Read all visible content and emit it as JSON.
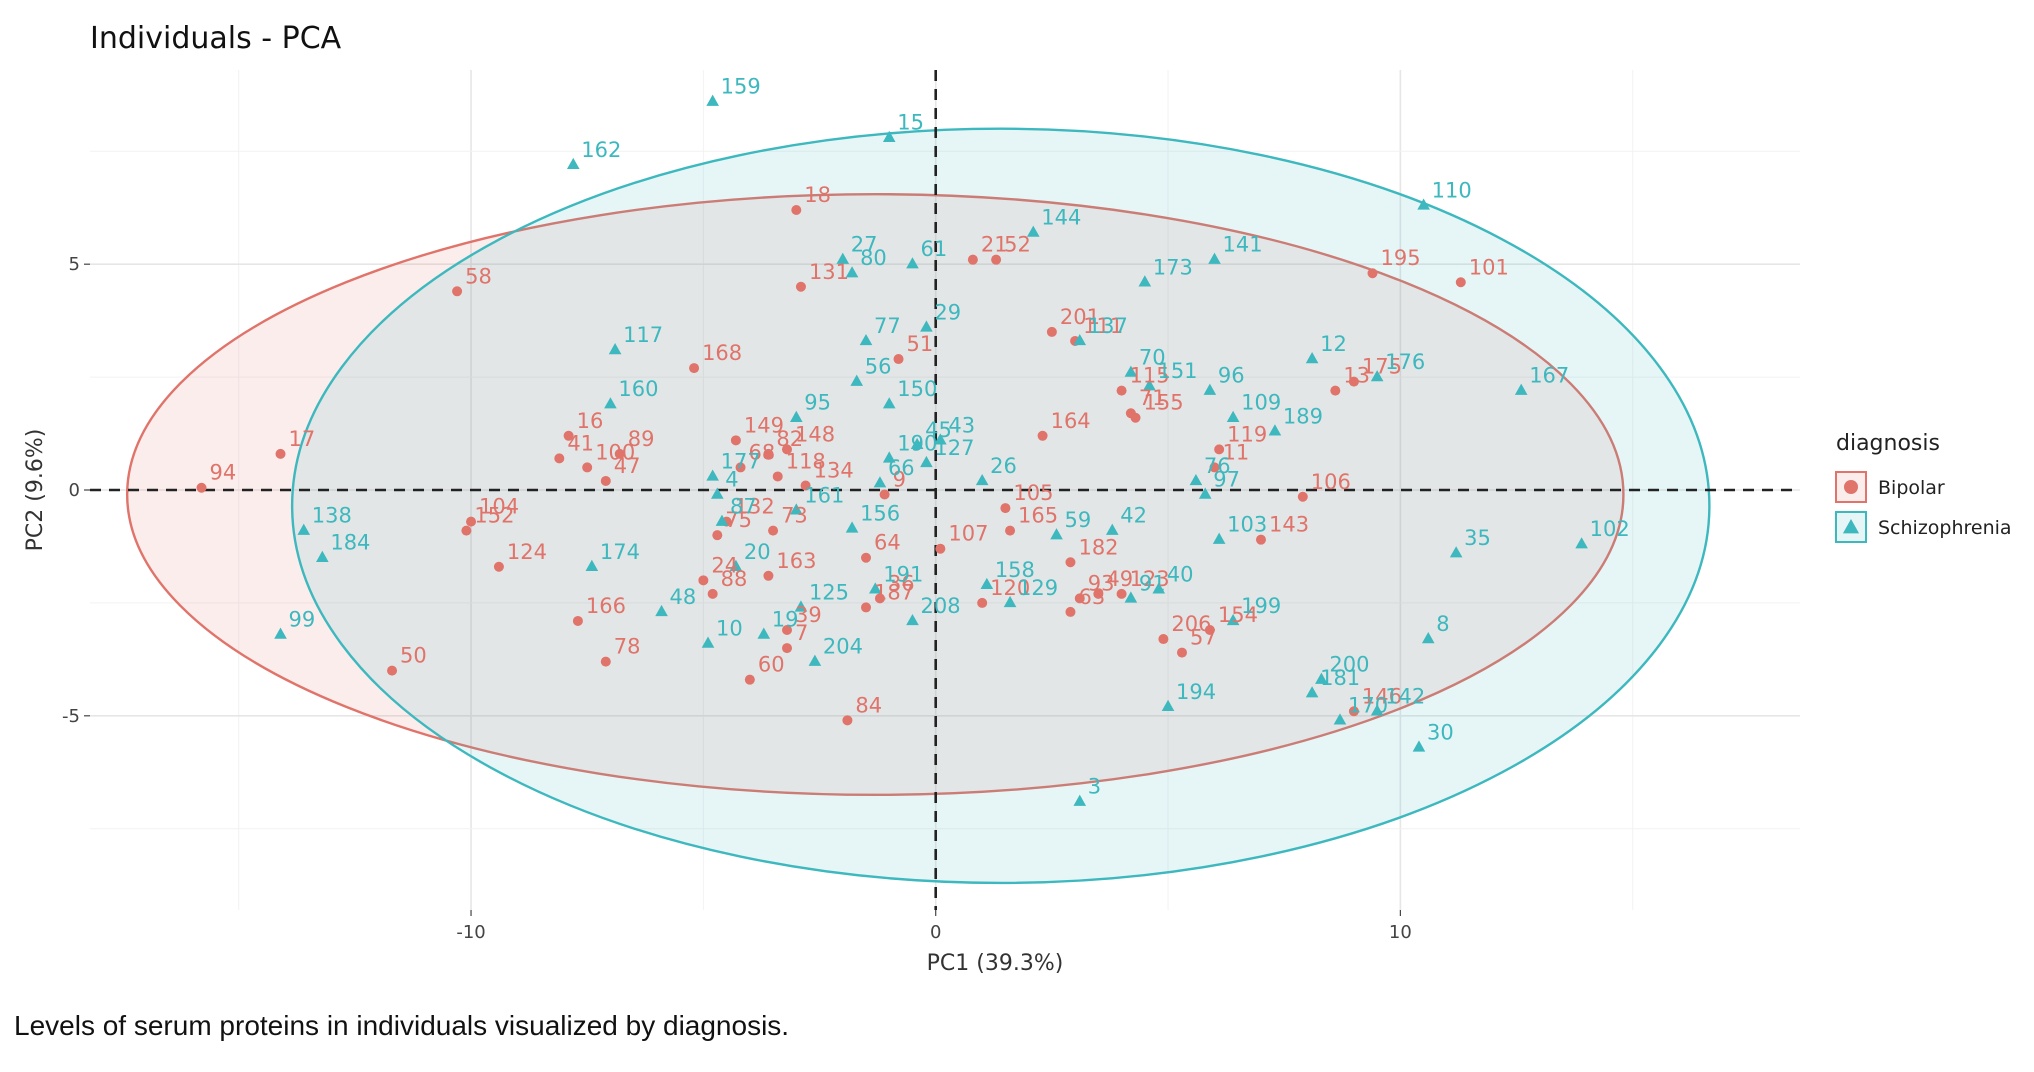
{
  "caption": "Levels of serum proteins in individuals visualized by diagnosis.",
  "chart_data": {
    "type": "scatter",
    "title": "Individuals - PCA",
    "xlabel": "PC1 (39.3%)",
    "ylabel": "PC2 (9.6%)",
    "xlim": [
      -18.2,
      18.6
    ],
    "ylim": [
      -9.3,
      9.3
    ],
    "xticks": [
      -10,
      0,
      10
    ],
    "yticks": [
      -5,
      0,
      5
    ],
    "grid": true,
    "legend": {
      "title": "diagnosis",
      "position": "right"
    },
    "colors": {
      "Bipolar": "#E0736A",
      "Schizophrenia": "#3DB8BE"
    },
    "series": [
      {
        "name": "Bipolar",
        "marker": "circle",
        "ellipse": {
          "cx": -1.3,
          "cy": -0.1,
          "rx": 16.1,
          "ry": 6.65
        },
        "points": [
          {
            "label": "94",
            "x": -15.8,
            "y": 0.05
          },
          {
            "label": "17",
            "x": -14.1,
            "y": 0.8
          },
          {
            "label": "58",
            "x": -10.3,
            "y": 4.4
          },
          {
            "label": "104",
            "x": -10.0,
            "y": -0.7
          },
          {
            "label": "152",
            "x": -10.1,
            "y": -0.9
          },
          {
            "label": "124",
            "x": -9.4,
            "y": -1.7
          },
          {
            "label": "50",
            "x": -11.7,
            "y": -4.0
          },
          {
            "label": "16",
            "x": -7.9,
            "y": 1.2
          },
          {
            "label": "41",
            "x": -8.1,
            "y": 0.7
          },
          {
            "label": "89",
            "x": -6.8,
            "y": 0.8
          },
          {
            "label": "100",
            "x": -7.5,
            "y": 0.5
          },
          {
            "label": "47",
            "x": -7.1,
            "y": 0.2
          },
          {
            "label": "166",
            "x": -7.7,
            "y": -2.9
          },
          {
            "label": "78",
            "x": -7.1,
            "y": -3.8
          },
          {
            "label": "168",
            "x": -5.2,
            "y": 2.7
          },
          {
            "label": "149",
            "x": -4.3,
            "y": 1.1
          },
          {
            "label": "82",
            "x": -3.6,
            "y": 0.8
          },
          {
            "label": "148",
            "x": -3.2,
            "y": 0.9
          },
          {
            "label": "68",
            "x": -4.2,
            "y": 0.5
          },
          {
            "label": "118",
            "x": -3.4,
            "y": 0.3
          },
          {
            "label": "134",
            "x": -2.8,
            "y": 0.1
          },
          {
            "label": "132",
            "x": -4.5,
            "y": -0.7
          },
          {
            "label": "75",
            "x": -4.7,
            "y": -1.0
          },
          {
            "label": "73",
            "x": -3.5,
            "y": -0.9
          },
          {
            "label": "24",
            "x": -5.0,
            "y": -2.0
          },
          {
            "label": "88",
            "x": -4.8,
            "y": -2.3
          },
          {
            "label": "163",
            "x": -3.6,
            "y": -1.9
          },
          {
            "label": "39",
            "x": -3.2,
            "y": -3.1
          },
          {
            "label": "7",
            "x": -3.2,
            "y": -3.5
          },
          {
            "label": "60",
            "x": -4.0,
            "y": -4.2
          },
          {
            "label": "18",
            "x": -3.0,
            "y": 6.2
          },
          {
            "label": "131",
            "x": -2.9,
            "y": 4.5
          },
          {
            "label": "9",
            "x": -1.1,
            "y": -0.1
          },
          {
            "label": "51",
            "x": -0.8,
            "y": 2.9
          },
          {
            "label": "36",
            "x": -1.2,
            "y": -2.4
          },
          {
            "label": "187",
            "x": -1.5,
            "y": -2.6
          },
          {
            "label": "84",
            "x": -1.9,
            "y": -5.1
          },
          {
            "label": "107",
            "x": 0.1,
            "y": -1.3
          },
          {
            "label": "64",
            "x": -1.5,
            "y": -1.5
          },
          {
            "label": "21",
            "x": 0.8,
            "y": 5.1
          },
          {
            "label": "52",
            "x": 1.3,
            "y": 5.1
          },
          {
            "label": "120",
            "x": 1.0,
            "y": -2.5
          },
          {
            "label": "105",
            "x": 1.5,
            "y": -0.4
          },
          {
            "label": "165",
            "x": 1.6,
            "y": -0.9
          },
          {
            "label": "201",
            "x": 2.5,
            "y": 3.5
          },
          {
            "label": "111",
            "x": 3.0,
            "y": 3.3
          },
          {
            "label": "115",
            "x": 4.0,
            "y": 2.2
          },
          {
            "label": "71",
            "x": 4.2,
            "y": 1.7
          },
          {
            "label": "155",
            "x": 4.3,
            "y": 1.6
          },
          {
            "label": "164",
            "x": 2.3,
            "y": 1.2
          },
          {
            "label": "182",
            "x": 2.9,
            "y": -1.6
          },
          {
            "label": "93",
            "x": 3.1,
            "y": -2.4
          },
          {
            "label": "49",
            "x": 3.5,
            "y": -2.3
          },
          {
            "label": "63",
            "x": 2.9,
            "y": -2.7
          },
          {
            "label": "123",
            "x": 4.0,
            "y": -2.3
          },
          {
            "label": "206",
            "x": 4.9,
            "y": -3.3
          },
          {
            "label": "57",
            "x": 5.3,
            "y": -3.6
          },
          {
            "label": "154",
            "x": 5.9,
            "y": -3.1
          },
          {
            "label": "119",
            "x": 6.1,
            "y": 0.9
          },
          {
            "label": "11",
            "x": 6.0,
            "y": 0.5
          },
          {
            "label": "106",
            "x": 7.9,
            "y": -0.15
          },
          {
            "label": "143",
            "x": 7.0,
            "y": -1.1
          },
          {
            "label": "195",
            "x": 9.4,
            "y": 4.8
          },
          {
            "label": "101",
            "x": 11.3,
            "y": 4.6
          },
          {
            "label": "175",
            "x": 9.0,
            "y": 2.4
          },
          {
            "label": "13",
            "x": 8.6,
            "y": 2.2
          },
          {
            "label": "146",
            "x": 9.0,
            "y": -4.9
          }
        ]
      },
      {
        "name": "Schizophrenia",
        "marker": "triangle",
        "ellipse": {
          "cx": 1.4,
          "cy": -0.35,
          "rx": 15.25,
          "ry": 8.35
        },
        "points": [
          {
            "label": "159",
            "x": -4.8,
            "y": 8.6
          },
          {
            "label": "162",
            "x": -7.8,
            "y": 7.2
          },
          {
            "label": "15",
            "x": -1.0,
            "y": 7.8
          },
          {
            "label": "144",
            "x": 2.1,
            "y": 5.7
          },
          {
            "label": "110",
            "x": 10.5,
            "y": 6.3
          },
          {
            "label": "27",
            "x": -2.0,
            "y": 5.1
          },
          {
            "label": "80",
            "x": -1.8,
            "y": 4.8
          },
          {
            "label": "61",
            "x": -0.5,
            "y": 5.0
          },
          {
            "label": "173",
            "x": 4.5,
            "y": 4.6
          },
          {
            "label": "141",
            "x": 6.0,
            "y": 5.1
          },
          {
            "label": "29",
            "x": -0.2,
            "y": 3.6
          },
          {
            "label": "77",
            "x": -1.5,
            "y": 3.3
          },
          {
            "label": "137",
            "x": 3.1,
            "y": 3.3
          },
          {
            "label": "117",
            "x": -6.9,
            "y": 3.1
          },
          {
            "label": "56",
            "x": -1.7,
            "y": 2.4
          },
          {
            "label": "70",
            "x": 4.2,
            "y": 2.6
          },
          {
            "label": "96",
            "x": 5.9,
            "y": 2.2
          },
          {
            "label": "12",
            "x": 8.1,
            "y": 2.9
          },
          {
            "label": "176",
            "x": 9.5,
            "y": 2.5
          },
          {
            "label": "160",
            "x": -7.0,
            "y": 1.9
          },
          {
            "label": "95",
            "x": -3.0,
            "y": 1.6
          },
          {
            "label": "150",
            "x": -1.0,
            "y": 1.9
          },
          {
            "label": "151",
            "x": 4.6,
            "y": 2.3
          },
          {
            "label": "109",
            "x": 6.4,
            "y": 1.6
          },
          {
            "label": "189",
            "x": 7.3,
            "y": 1.3
          },
          {
            "label": "167",
            "x": 12.6,
            "y": 2.2
          },
          {
            "label": "190",
            "x": -1.0,
            "y": 0.7
          },
          {
            "label": "45",
            "x": -0.4,
            "y": 1.0
          },
          {
            "label": "43",
            "x": 0.1,
            "y": 1.1
          },
          {
            "label": "127",
            "x": -0.2,
            "y": 0.6
          },
          {
            "label": "66",
            "x": -1.2,
            "y": 0.15
          },
          {
            "label": "177",
            "x": -4.8,
            "y": 0.3
          },
          {
            "label": "4",
            "x": -4.7,
            "y": -0.1
          },
          {
            "label": "87",
            "x": -4.6,
            "y": -0.7
          },
          {
            "label": "161",
            "x": -3.0,
            "y": -0.45
          },
          {
            "label": "156",
            "x": -1.8,
            "y": -0.85
          },
          {
            "label": "76",
            "x": 5.6,
            "y": 0.2
          },
          {
            "label": "97",
            "x": 5.8,
            "y": -0.1
          },
          {
            "label": "26",
            "x": 1.0,
            "y": 0.2
          },
          {
            "label": "59",
            "x": 2.6,
            "y": -1.0
          },
          {
            "label": "42",
            "x": 3.8,
            "y": -0.9
          },
          {
            "label": "138",
            "x": -13.6,
            "y": -0.9
          },
          {
            "label": "184",
            "x": -13.2,
            "y": -1.5
          },
          {
            "label": "174",
            "x": -7.4,
            "y": -1.7
          },
          {
            "label": "20",
            "x": -4.3,
            "y": -1.7
          },
          {
            "label": "191",
            "x": -1.3,
            "y": -2.2
          },
          {
            "label": "158",
            "x": 1.1,
            "y": -2.1
          },
          {
            "label": "103",
            "x": 6.1,
            "y": -1.1
          },
          {
            "label": "35",
            "x": 11.2,
            "y": -1.4
          },
          {
            "label": "102",
            "x": 13.9,
            "y": -1.2
          },
          {
            "label": "48",
            "x": -5.9,
            "y": -2.7
          },
          {
            "label": "125",
            "x": -2.9,
            "y": -2.6
          },
          {
            "label": "129",
            "x": 1.6,
            "y": -2.5
          },
          {
            "label": "91",
            "x": 4.2,
            "y": -2.4
          },
          {
            "label": "40",
            "x": 4.8,
            "y": -2.2
          },
          {
            "label": "199",
            "x": 6.4,
            "y": -2.9
          },
          {
            "label": "10",
            "x": -4.9,
            "y": -3.4
          },
          {
            "label": "19",
            "x": -3.7,
            "y": -3.2
          },
          {
            "label": "204",
            "x": -2.6,
            "y": -3.8
          },
          {
            "label": "208",
            "x": -0.5,
            "y": -2.9
          },
          {
            "label": "8",
            "x": 10.6,
            "y": -3.3
          },
          {
            "label": "99",
            "x": -14.1,
            "y": -3.2
          },
          {
            "label": "200",
            "x": 8.3,
            "y": -4.2
          },
          {
            "label": "181",
            "x": 8.1,
            "y": -4.5
          },
          {
            "label": "170",
            "x": 8.7,
            "y": -5.1
          },
          {
            "label": "142",
            "x": 9.5,
            "y": -4.9
          },
          {
            "label": "30",
            "x": 10.4,
            "y": -5.7
          },
          {
            "label": "194",
            "x": 5.0,
            "y": -4.8
          },
          {
            "label": "3",
            "x": 3.1,
            "y": -6.9
          }
        ]
      }
    ]
  }
}
